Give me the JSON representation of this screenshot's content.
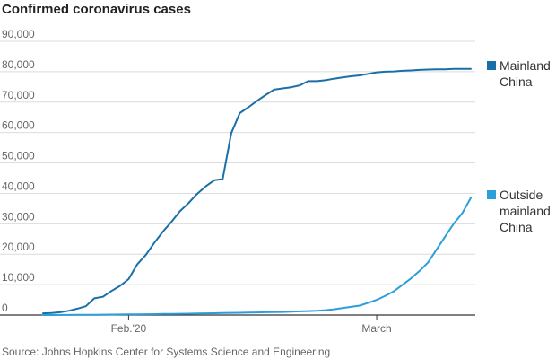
{
  "chart_data": {
    "type": "line",
    "title": "Confirmed coronavirus cases",
    "source": "Source: Johns Hopkins Center for Systems Science and Engineering",
    "xlabel": "",
    "ylabel": "",
    "ylim": [
      0,
      90000
    ],
    "y_ticks": [
      0,
      10000,
      20000,
      30000,
      40000,
      50000,
      60000,
      70000,
      80000,
      90000
    ],
    "y_tick_labels": [
      "0",
      "10,000",
      "20,000",
      "30,000",
      "40,000",
      "50,000",
      "60,000",
      "70,000",
      "80,000",
      "90,000"
    ],
    "xlim": [
      "2020-01-22",
      "2020-03-12"
    ],
    "x_ticks": [
      "2020-02-01",
      "2020-03-01"
    ],
    "x_tick_labels": [
      "Feb.'20",
      "March"
    ],
    "grid": "horizontal",
    "legend_placement": "right, at line ends",
    "x": [
      "2020-01-22",
      "2020-01-23",
      "2020-01-24",
      "2020-01-25",
      "2020-01-26",
      "2020-01-27",
      "2020-01-28",
      "2020-01-29",
      "2020-01-30",
      "2020-01-31",
      "2020-02-01",
      "2020-02-02",
      "2020-02-03",
      "2020-02-04",
      "2020-02-05",
      "2020-02-06",
      "2020-02-07",
      "2020-02-08",
      "2020-02-09",
      "2020-02-10",
      "2020-02-11",
      "2020-02-12",
      "2020-02-13",
      "2020-02-14",
      "2020-02-15",
      "2020-02-16",
      "2020-02-17",
      "2020-02-18",
      "2020-02-19",
      "2020-02-20",
      "2020-02-21",
      "2020-02-22",
      "2020-02-23",
      "2020-02-24",
      "2020-02-25",
      "2020-02-26",
      "2020-02-27",
      "2020-02-28",
      "2020-02-29",
      "2020-03-01",
      "2020-03-02",
      "2020-03-03",
      "2020-03-04",
      "2020-03-05",
      "2020-03-06",
      "2020-03-07",
      "2020-03-08",
      "2020-03-09",
      "2020-03-10",
      "2020-03-11"
    ],
    "series": [
      {
        "name": "Mainland China",
        "label_lines": [
          "Mainland",
          "China"
        ],
        "color": "#1a6fa8",
        "values": [
          550,
          640,
          920,
          1400,
          2100,
          2900,
          5500,
          6000,
          7900,
          9600,
          11800,
          16600,
          19700,
          23700,
          27400,
          30600,
          34100,
          36800,
          39800,
          42300,
          44300,
          44700,
          59800,
          66400,
          68300,
          70400,
          72300,
          74100,
          74500,
          74900,
          75500,
          76900,
          76900,
          77200,
          77700,
          78100,
          78500,
          78800,
          79300,
          79800,
          80000,
          80100,
          80300,
          80400,
          80600,
          80700,
          80800,
          80800,
          80900,
          80900
        ]
      },
      {
        "name": "Outside mainland China",
        "label_lines": [
          "Outside",
          "mainland",
          "China"
        ],
        "color": "#2b9fd9",
        "values": [
          5,
          10,
          20,
          30,
          50,
          80,
          100,
          120,
          150,
          180,
          200,
          230,
          270,
          300,
          350,
          380,
          400,
          450,
          500,
          550,
          600,
          650,
          700,
          750,
          800,
          850,
          900,
          950,
          1000,
          1100,
          1200,
          1300,
          1400,
          1600,
          1900,
          2300,
          2700,
          3100,
          4000,
          5000,
          6300,
          7800,
          9900,
          12000,
          14500,
          17300,
          21500,
          25800,
          30000,
          33500
        ]
      }
    ],
    "outside_last_point": {
      "date": "2020-03-12",
      "value": 38500
    }
  }
}
